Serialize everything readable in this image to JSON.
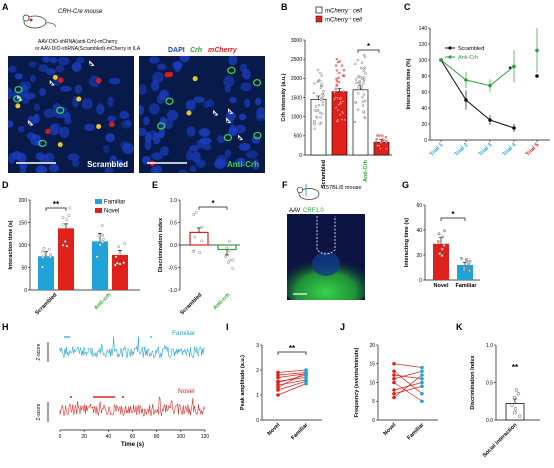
{
  "panels": {
    "A": {
      "label": "A",
      "mouse": "CRH-Cre mouse",
      "virus_line1": "AAV-DIO-shRNA(anti-Crh)-mCherry",
      "virus_line2": "or AAV-DIO-shRNA(Scrambled)-mCherry in ILA",
      "legend_dapi": "DAPI",
      "legend_crh": "Crh",
      "legend_mcherry": "mCherry",
      "img1_caption": "Scrambled",
      "img2_caption": "Anti-Crh"
    },
    "B": {
      "label": "B",
      "legend_open": "mCherry⁻ cell",
      "legend_filled": "mCherry⁺ cell",
      "ylabel": "Crh intensity (a.u.)",
      "yticks": [
        "0",
        "500",
        "1000",
        "1500",
        "2000",
        "2500",
        "3000"
      ],
      "groups": [
        "Scrambled",
        "Anti-Crh"
      ],
      "sig": "*"
    },
    "C": {
      "label": "C",
      "ylabel": "Interaction time (%)",
      "yticks": [
        "0",
        "20",
        "40",
        "60",
        "80",
        "100",
        "120",
        "140"
      ],
      "xticks": [
        "Trial 1",
        "Trial 2",
        "Trial 3",
        "Trial 4",
        "Trial 5"
      ],
      "legend": [
        "Scrambled",
        "Anti-Crh"
      ],
      "sig": "*"
    },
    "D": {
      "label": "D",
      "ylabel": "Interaction time (s)",
      "yticks": [
        "0",
        "50",
        "100",
        "150",
        "200"
      ],
      "legend": [
        "Familiar",
        "Novel"
      ],
      "groups": [
        "Scrambled",
        "Anti-crh"
      ],
      "sig": "**"
    },
    "E": {
      "label": "E",
      "ylabel": "Discrimination index",
      "yticks": [
        "-1.0",
        "-0.5",
        "0.0",
        "0.5",
        "1.0"
      ],
      "groups": [
        "Scrambled",
        "Anti-crh"
      ],
      "sig": "*"
    },
    "F": {
      "label": "F",
      "mouse": "C57BL/6 mouse",
      "virus_prefix": "AAV",
      "virus_name": "CRF1.0"
    },
    "G": {
      "label": "G",
      "ylabel": "Interacting time (s)",
      "yticks": [
        "0",
        "20",
        "40",
        "60"
      ],
      "groups": [
        "Novel",
        "Familiar"
      ],
      "sig": "*"
    },
    "H": {
      "label": "H",
      "trace1": "Familiar",
      "trace2": "Novel",
      "ylabel": "Z-score",
      "xlabel": "Time (s)",
      "xticks": [
        "0",
        "20",
        "40",
        "60",
        "80",
        "100",
        "120"
      ]
    },
    "I": {
      "label": "I",
      "ylabel": "Peak amplitude (a.u.)",
      "yticks": [
        "0",
        "1",
        "2",
        "3"
      ],
      "groups": [
        "Novel",
        "Familiar"
      ],
      "sig": "**"
    },
    "J": {
      "label": "J",
      "ylabel": "Frequency (events/minute)",
      "yticks": [
        "0",
        "5",
        "10",
        "15",
        "20"
      ],
      "groups": [
        "Novel",
        "Familiar"
      ]
    },
    "K": {
      "label": "K",
      "ylabel": "Discrimination Index",
      "yticks": [
        "0.0",
        "0.5",
        "1.0"
      ],
      "groups": [
        "Social interaction"
      ],
      "sig": "**"
    }
  },
  "colors": {
    "red": "#e0201b",
    "green": "#2aa33b",
    "cyan": "#1fa3d9",
    "black": "#111111",
    "gray": "#9a9a9a"
  },
  "chart_data": [
    {
      "panel": "B",
      "type": "bar",
      "categories": [
        "Scrambled mCherry-",
        "Scrambled mCherry+",
        "Anti-Crh mCherry-",
        "Anti-Crh mCherry+"
      ],
      "values": [
        1450,
        1650,
        1700,
        330
      ],
      "errors": [
        90,
        80,
        110,
        70
      ],
      "ylim": [
        0,
        3000
      ]
    },
    {
      "panel": "C",
      "type": "line",
      "x": [
        "Trial 1",
        "Trial 2",
        "Trial 3",
        "Trial 4",
        "Trial 5"
      ],
      "series": [
        {
          "name": "Scrambled",
          "values": [
            100,
            50,
            25,
            15,
            80
          ],
          "errors": [
            0,
            12,
            6,
            5,
            0
          ]
        },
        {
          "name": "Anti-Crh",
          "values": [
            100,
            75,
            68,
            92,
            112
          ],
          "errors": [
            0,
            10,
            8,
            20,
            28
          ]
        }
      ],
      "ylim": [
        0,
        140
      ]
    },
    {
      "panel": "D",
      "type": "bar",
      "categories": [
        "Scrambled",
        "Anti-crh"
      ],
      "series": [
        {
          "name": "Familiar",
          "values": [
            75,
            108
          ],
          "errors": [
            10,
            18
          ]
        },
        {
          "name": "Novel",
          "values": [
            137,
            78
          ],
          "errors": [
            10,
            10
          ]
        }
      ],
      "ylim": [
        0,
        200
      ]
    },
    {
      "panel": "E",
      "type": "bar",
      "categories": [
        "Scrambled",
        "Anti-crh"
      ],
      "values": [
        0.28,
        -0.1
      ],
      "errors": [
        0.1,
        0.12
      ],
      "ylim": [
        -1.0,
        1.0
      ]
    },
    {
      "panel": "G",
      "type": "bar",
      "categories": [
        "Novel",
        "Familiar"
      ],
      "values": [
        29,
        12
      ],
      "errors": [
        5,
        2
      ],
      "ylim": [
        0,
        60
      ]
    },
    {
      "panel": "I",
      "type": "scatter",
      "categories": [
        "Novel",
        "Familiar"
      ],
      "pairs": [
        [
          1.0,
          1.45
        ],
        [
          1.2,
          1.55
        ],
        [
          1.4,
          1.6
        ],
        [
          1.5,
          1.8
        ],
        [
          1.55,
          1.7
        ],
        [
          1.7,
          1.85
        ],
        [
          1.8,
          1.9
        ],
        [
          1.3,
          1.9
        ],
        [
          1.9,
          2.0
        ]
      ],
      "ylim": [
        0,
        3
      ]
    },
    {
      "panel": "J",
      "type": "scatter",
      "categories": [
        "Novel",
        "Familiar"
      ],
      "pairs": [
        [
          6,
          12
        ],
        [
          7,
          9
        ],
        [
          8,
          10
        ],
        [
          10,
          5
        ],
        [
          11,
          13
        ],
        [
          12,
          11
        ],
        [
          13,
          7
        ],
        [
          15,
          14
        ]
      ],
      "ylim": [
        0,
        20
      ]
    },
    {
      "panel": "K",
      "type": "bar",
      "categories": [
        "Social interaction"
      ],
      "values": [
        0.22
      ],
      "errors": [
        0.06
      ],
      "points": [
        0.05,
        0.1,
        0.15,
        0.2,
        0.3,
        0.35,
        0.4
      ],
      "ylim": [
        0,
        1.0
      ]
    }
  ]
}
